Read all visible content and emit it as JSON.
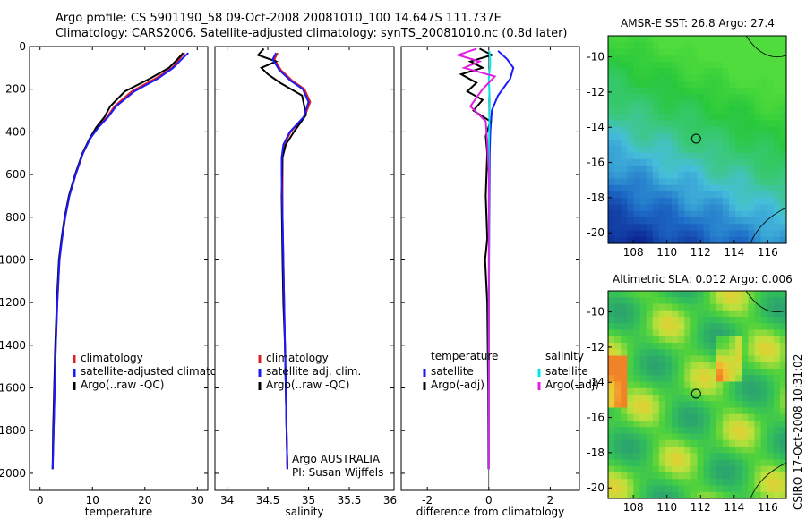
{
  "header": {
    "line1": "Argo profile: CS 5901190_58 09-Oct-2008 20081010_100 14.647S 111.737E",
    "line2": "Climatology: CARS2006. Satellite-adjusted climatology: synTS_20081010.nc (0.8d later)"
  },
  "colors": {
    "climatology": "#e02020",
    "satellite": "#1a1aff",
    "argo": "#000000",
    "sal_sat": "#00e5e5",
    "sal_argo": "#e020e0"
  },
  "chart_data": [
    {
      "type": "line",
      "id": "temperature",
      "xlabel": "temperature",
      "ylabel": "",
      "xlim": [
        -2,
        32
      ],
      "ylim": [
        2080,
        0
      ],
      "xticks": [
        0,
        10,
        20,
        30
      ],
      "yticks": [
        0,
        200,
        400,
        600,
        800,
        1000,
        1200,
        1400,
        1600,
        1800,
        2000
      ],
      "legend": [
        "climatology",
        "satellite-adjusted climatology",
        "Argo(..raw -QC)"
      ],
      "series": [
        {
          "name": "climatology",
          "color": "#e02020",
          "x": [
            27.6,
            26.5,
            25.2,
            22,
            17.5,
            14.2,
            12.8,
            11,
            9.6,
            8.2,
            6.8,
            5.6,
            4.8,
            4.2,
            3.7,
            3.3,
            3.0,
            2.8,
            2.6,
            2.4
          ],
          "y": [
            30,
            60,
            100,
            150,
            210,
            280,
            330,
            380,
            430,
            500,
            600,
            700,
            800,
            900,
            1000,
            1200,
            1400,
            1600,
            1800,
            1980
          ]
        },
        {
          "name": "Argo",
          "color": "#000000",
          "x": [
            27.3,
            26.2,
            24.6,
            21,
            16.2,
            13.4,
            12.3,
            10.7,
            9.5,
            8.1,
            6.7,
            5.5,
            4.7,
            4.1,
            3.6,
            3.2,
            2.9,
            2.7,
            2.5,
            2.4
          ],
          "y": [
            30,
            60,
            100,
            150,
            210,
            280,
            330,
            380,
            430,
            500,
            600,
            700,
            800,
            900,
            1000,
            1200,
            1400,
            1600,
            1800,
            1980
          ]
        },
        {
          "name": "satellite-adjusted",
          "color": "#1a1aff",
          "x": [
            28.3,
            27,
            25.4,
            22.5,
            18,
            14.5,
            13,
            11.1,
            9.6,
            8.2,
            6.8,
            5.6,
            4.8,
            4.2,
            3.7,
            3.3,
            3.0,
            2.8,
            2.6,
            2.4
          ],
          "y": [
            30,
            60,
            100,
            150,
            210,
            280,
            330,
            380,
            430,
            500,
            600,
            700,
            800,
            900,
            1000,
            1200,
            1400,
            1600,
            1800,
            1980
          ]
        }
      ]
    },
    {
      "type": "line",
      "id": "salinity",
      "xlabel": "salinity",
      "xlim": [
        33.85,
        36.05
      ],
      "ylim": [
        2080,
        0
      ],
      "xticks": [
        34,
        34.5,
        35,
        35.5,
        36
      ],
      "legend": [
        "climatology",
        "satellite adj. clim.",
        "Argo(..raw -QC)"
      ],
      "annotation": [
        "Argo AUSTRALIA",
        "PI: Susan Wijffels"
      ],
      "series": [
        {
          "name": "climatology",
          "color": "#e02020",
          "x": [
            34.62,
            34.58,
            34.66,
            34.8,
            34.95,
            35.02,
            34.95,
            34.78,
            34.7,
            34.68,
            34.68,
            34.68,
            34.69,
            34.7,
            34.71,
            34.72,
            34.73,
            34.74
          ],
          "y": [
            30,
            60,
            110,
            160,
            200,
            260,
            330,
            400,
            460,
            520,
            600,
            800,
            1000,
            1200,
            1400,
            1600,
            1800,
            1980
          ]
        },
        {
          "name": "Argo",
          "color": "#000000",
          "x": [
            34.45,
            34.38,
            34.6,
            34.42,
            34.5,
            34.65,
            34.92,
            34.97,
            34.82,
            34.72,
            34.68,
            34.67,
            34.68,
            34.69,
            34.71,
            34.72,
            34.73,
            34.74
          ],
          "y": [
            10,
            40,
            70,
            100,
            130,
            170,
            230,
            320,
            400,
            460,
            520,
            700,
            1000,
            1200,
            1400,
            1600,
            1800,
            1980
          ]
        },
        {
          "name": "satellite adj.",
          "color": "#1a1aff",
          "x": [
            34.6,
            34.56,
            34.64,
            34.78,
            34.93,
            35.0,
            34.94,
            34.77,
            34.69,
            34.67,
            34.67,
            34.68,
            34.69,
            34.7,
            34.71,
            34.72,
            34.73,
            34.74
          ],
          "y": [
            30,
            60,
            110,
            160,
            200,
            260,
            330,
            400,
            460,
            520,
            600,
            800,
            1000,
            1200,
            1400,
            1600,
            1800,
            1980
          ]
        }
      ]
    },
    {
      "type": "line",
      "id": "difference",
      "xlabel": "difference from climatology",
      "xlim": [
        -2.85,
        2.95
      ],
      "ylim": [
        2080,
        0
      ],
      "xticks": [
        -2,
        0,
        2
      ],
      "legend_left_title": "temperature",
      "legend_right_title": "salinity",
      "legend_left": [
        "satellite",
        "Argo(-adj)"
      ],
      "legend_right": [
        "satellite",
        "Argo(-adj)"
      ],
      "series": [
        {
          "name": "temp satellite",
          "color": "#1a1aff",
          "x": [
            0.3,
            0.6,
            0.8,
            0.7,
            0.3,
            0.1,
            0.05,
            0.03,
            0.02,
            0.01,
            0.0,
            0.0
          ],
          "y": [
            20,
            60,
            100,
            150,
            230,
            300,
            400,
            500,
            700,
            1000,
            1500,
            1980
          ]
        },
        {
          "name": "temp Argo",
          "color": "#000000",
          "x": [
            -0.3,
            0.1,
            -0.6,
            -0.2,
            -0.9,
            -0.4,
            -0.7,
            -0.2,
            -0.5,
            0.05,
            -0.1,
            -0.05,
            -0.1,
            -0.05,
            -0.12,
            -0.05,
            -0.02,
            -0.01
          ],
          "y": [
            10,
            40,
            70,
            100,
            130,
            170,
            210,
            250,
            300,
            350,
            420,
            500,
            700,
            900,
            1000,
            1200,
            1600,
            1980
          ]
        },
        {
          "name": "sal satellite",
          "color": "#00e5e5",
          "x": [
            0.02,
            0.05,
            0.0,
            0.03,
            0.02,
            0.0,
            0.01,
            0.0,
            0.0
          ],
          "y": [
            20,
            80,
            150,
            250,
            350,
            500,
            800,
            1200,
            1980
          ]
        },
        {
          "name": "sal Argo",
          "color": "#e020e0",
          "x": [
            -0.4,
            -1.0,
            -0.3,
            -0.8,
            0.2,
            -0.2,
            -0.6,
            -0.1,
            -0.05,
            0.0,
            0.0,
            0.0
          ],
          "y": [
            10,
            40,
            70,
            100,
            140,
            200,
            280,
            350,
            450,
            600,
            1000,
            1980
          ]
        }
      ]
    },
    {
      "type": "heatmap",
      "id": "sst-map",
      "title": "AMSR-E SST: 26.8 Argo: 27.4",
      "xlim": [
        106.5,
        117.1
      ],
      "ylim": [
        -20.6,
        -8.8
      ],
      "xticks": [
        108,
        110,
        112,
        114,
        116
      ],
      "yticks": [
        -10,
        -12,
        -14,
        -16,
        -18,
        -20
      ],
      "marker": {
        "lon": 111.737,
        "lat": -14.647
      }
    },
    {
      "type": "heatmap",
      "id": "sla-map",
      "title": "Altimetric SLA: 0.012 Argo: 0.006",
      "xlim": [
        106.5,
        117.1
      ],
      "ylim": [
        -20.6,
        -8.8
      ],
      "xticks": [
        108,
        110,
        112,
        114,
        116
      ],
      "yticks": [
        -10,
        -12,
        -14,
        -16,
        -18,
        -20
      ],
      "marker": {
        "lon": 111.737,
        "lat": -14.647
      }
    }
  ],
  "footer": {
    "stamp": "CSIRO 17-Oct-2008 10:31:02"
  }
}
